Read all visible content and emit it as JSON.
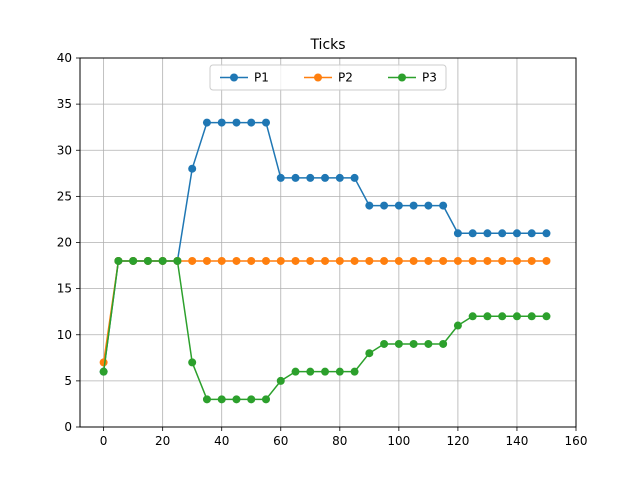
{
  "chart_data": {
    "type": "line",
    "title": "Ticks",
    "xlabel": "",
    "ylabel": "",
    "xlim": [
      -8,
      160
    ],
    "ylim": [
      0,
      40
    ],
    "xticks": [
      0,
      20,
      40,
      60,
      80,
      100,
      120,
      140,
      160
    ],
    "yticks": [
      0,
      5,
      10,
      15,
      20,
      25,
      30,
      35,
      40
    ],
    "grid": true,
    "legend": {
      "position": "top-center",
      "columns": 3
    },
    "x": [
      0,
      5,
      10,
      15,
      20,
      25,
      30,
      35,
      40,
      45,
      50,
      55,
      60,
      65,
      70,
      75,
      80,
      85,
      90,
      95,
      100,
      105,
      110,
      115,
      120,
      125,
      130,
      135,
      140,
      145,
      150
    ],
    "series": [
      {
        "name": "P1",
        "color": "#1f77b4",
        "values": [
          6,
          18,
          18,
          18,
          18,
          18,
          28,
          33,
          33,
          33,
          33,
          33,
          27,
          27,
          27,
          27,
          27,
          27,
          24,
          24,
          24,
          24,
          24,
          24,
          21,
          21,
          21,
          21,
          21,
          21,
          21
        ]
      },
      {
        "name": "P2",
        "color": "#ff7f0e",
        "values": [
          7,
          18,
          18,
          18,
          18,
          18,
          18,
          18,
          18,
          18,
          18,
          18,
          18,
          18,
          18,
          18,
          18,
          18,
          18,
          18,
          18,
          18,
          18,
          18,
          18,
          18,
          18,
          18,
          18,
          18,
          18
        ]
      },
      {
        "name": "P3",
        "color": "#2ca02c",
        "values": [
          6,
          18,
          18,
          18,
          18,
          18,
          7,
          3,
          3,
          3,
          3,
          3,
          5,
          6,
          6,
          6,
          6,
          6,
          8,
          9,
          9,
          9,
          9,
          9,
          11,
          12,
          12,
          12,
          12,
          12,
          12
        ]
      }
    ]
  }
}
